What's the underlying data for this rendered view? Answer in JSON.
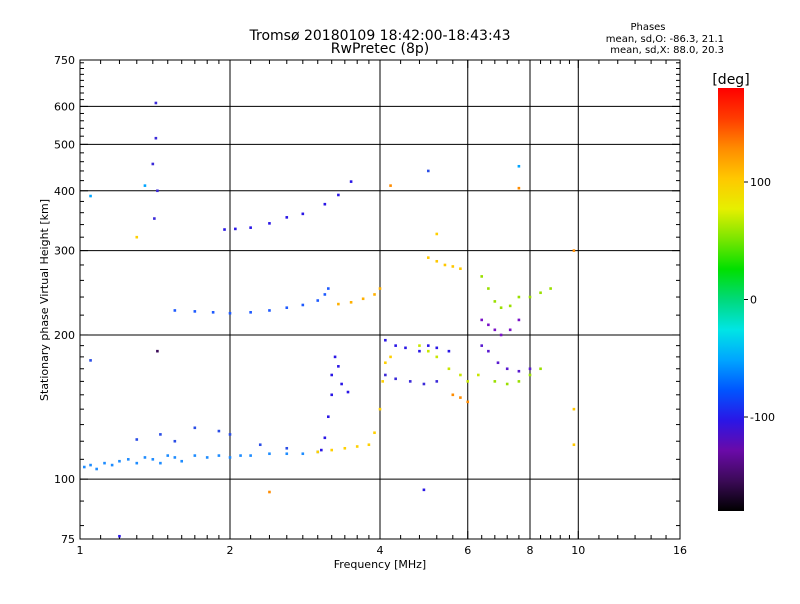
{
  "chart_data": {
    "type": "scatter",
    "title": "Tromsø 20180109 18:42:00-18:43:43",
    "subtitle": "RwPretec (8p)",
    "xlabel": "Frequency [MHz]",
    "ylabel": "Stationary phase Virtual Height [km]",
    "x_scale": "log",
    "y_scale": "log",
    "xlim": [
      1,
      16
    ],
    "ylim": [
      75,
      750
    ],
    "x_ticks": [
      1,
      2,
      4,
      6,
      8,
      10,
      16
    ],
    "x_minor_ticks": [
      1.1,
      1.2,
      1.3,
      1.4,
      1.5,
      1.6,
      1.7,
      1.8,
      1.9,
      2.2,
      2.4,
      2.6,
      2.8,
      3,
      3.2,
      3.4,
      3.6,
      3.8,
      4.4,
      4.8,
      5.2,
      5.6,
      6.4,
      6.8,
      7.2,
      7.6,
      8.4,
      8.8,
      9.2,
      9.6,
      11,
      12,
      13,
      14,
      15
    ],
    "y_ticks": [
      75,
      100,
      200,
      300,
      400,
      500,
      600,
      750
    ],
    "y_minor_ticks": [
      80,
      90,
      110,
      120,
      130,
      140,
      150,
      160,
      170,
      180,
      190,
      220,
      240,
      260,
      280,
      320,
      340,
      360,
      380,
      420,
      440,
      460,
      480,
      520,
      540,
      560,
      580,
      620,
      640,
      660,
      680,
      700,
      720,
      740
    ],
    "grid": true,
    "grid_x": [
      2,
      4,
      6,
      8,
      10
    ],
    "grid_y": [
      100,
      200,
      300,
      400,
      500,
      600
    ],
    "colorbar": {
      "label": "[deg]",
      "range": [
        -180,
        180
      ],
      "ticks": [
        100,
        0,
        -100
      ],
      "colors": [
        "#000000",
        "#3b0a57",
        "#6a0aa8",
        "#2a16e6",
        "#0055ff",
        "#00a5ff",
        "#00e5e5",
        "#00d97a",
        "#00e000",
        "#7ae600",
        "#e6ef00",
        "#ffc800",
        "#ff8c00",
        "#ff3c00",
        "#ff0000"
      ]
    },
    "annotation": {
      "title": "Phases",
      "line1": "mean, sd,O: -86.3, 21.1",
      "line2": "mean, sd,X:  88.0, 20.3"
    },
    "series": [
      {
        "color": "#1e8cff",
        "points": [
          [
            1.02,
            106
          ],
          [
            1.05,
            107
          ],
          [
            1.08,
            105
          ],
          [
            1.12,
            108
          ],
          [
            1.16,
            107
          ],
          [
            1.2,
            109
          ],
          [
            1.25,
            110
          ],
          [
            1.3,
            108
          ],
          [
            1.35,
            111
          ],
          [
            1.4,
            110
          ],
          [
            1.45,
            108
          ],
          [
            1.5,
            112
          ],
          [
            1.55,
            111
          ],
          [
            1.6,
            109
          ],
          [
            1.7,
            112
          ],
          [
            1.8,
            111
          ],
          [
            1.9,
            112
          ],
          [
            2.0,
            111
          ],
          [
            2.1,
            112
          ],
          [
            2.2,
            112
          ],
          [
            2.4,
            113
          ],
          [
            2.6,
            113
          ],
          [
            2.8,
            113
          ],
          [
            3.0,
            114
          ]
        ]
      },
      {
        "color": "#2a4de6",
        "points": [
          [
            1.3,
            121
          ],
          [
            1.45,
            124
          ],
          [
            1.55,
            120
          ],
          [
            1.7,
            128
          ],
          [
            1.9,
            126
          ],
          [
            2.0,
            124
          ],
          [
            2.3,
            118
          ],
          [
            2.6,
            116
          ]
        ]
      },
      {
        "color": "#1e5aff",
        "points": [
          [
            1.55,
            225
          ],
          [
            1.7,
            224
          ],
          [
            1.85,
            223
          ],
          [
            2.0,
            222
          ],
          [
            2.2,
            223
          ],
          [
            2.4,
            225
          ],
          [
            2.6,
            228
          ],
          [
            2.8,
            231
          ],
          [
            3.0,
            236
          ],
          [
            3.1,
            243
          ],
          [
            3.15,
            250
          ]
        ]
      },
      {
        "color": "#2a16e6",
        "points": [
          [
            1.95,
            332
          ],
          [
            2.05,
            333
          ],
          [
            2.2,
            335
          ],
          [
            2.4,
            342
          ],
          [
            2.6,
            352
          ],
          [
            2.8,
            358
          ],
          [
            3.1,
            375
          ],
          [
            3.3,
            392
          ],
          [
            3.5,
            418
          ]
        ]
      },
      {
        "color": "#3b2ad9",
        "points": [
          [
            1.42,
            610
          ],
          [
            1.42,
            515
          ],
          [
            1.4,
            455
          ],
          [
            1.43,
            400
          ],
          [
            1.41,
            350
          ]
        ]
      },
      {
        "color": "#2a16e6",
        "points": [
          [
            3.05,
            115
          ],
          [
            3.1,
            122
          ],
          [
            3.15,
            135
          ],
          [
            3.2,
            150
          ],
          [
            3.2,
            165
          ],
          [
            3.25,
            180
          ],
          [
            3.3,
            172
          ],
          [
            3.35,
            158
          ],
          [
            3.45,
            152
          ]
        ]
      },
      {
        "color": "#ffd000",
        "points": [
          [
            3.0,
            114
          ],
          [
            3.2,
            115
          ],
          [
            3.4,
            116
          ],
          [
            3.6,
            117
          ],
          [
            3.8,
            118
          ],
          [
            3.9,
            125
          ],
          [
            4.0,
            140
          ],
          [
            4.05,
            160
          ],
          [
            4.1,
            175
          ],
          [
            4.2,
            180
          ]
        ]
      },
      {
        "color": "#ffb000",
        "points": [
          [
            3.3,
            232
          ],
          [
            3.5,
            234
          ],
          [
            3.7,
            238
          ],
          [
            3.9,
            243
          ],
          [
            4.0,
            250
          ]
        ]
      },
      {
        "color": "#2a16e6",
        "points": [
          [
            4.1,
            195
          ],
          [
            4.3,
            190
          ],
          [
            4.5,
            188
          ],
          [
            4.8,
            185
          ],
          [
            5.0,
            190
          ],
          [
            5.2,
            188
          ],
          [
            5.5,
            185
          ]
        ]
      },
      {
        "color": "#3b2ad9",
        "points": [
          [
            4.1,
            165
          ],
          [
            4.3,
            162
          ],
          [
            4.6,
            160
          ],
          [
            4.9,
            158
          ],
          [
            5.2,
            160
          ]
        ]
      },
      {
        "color": "#ffc800",
        "points": [
          [
            5.0,
            290
          ],
          [
            5.2,
            285
          ],
          [
            5.4,
            280
          ],
          [
            5.6,
            278
          ],
          [
            5.8,
            275
          ]
        ]
      },
      {
        "color": "#c8e600",
        "points": [
          [
            4.8,
            190
          ],
          [
            5.0,
            185
          ],
          [
            5.2,
            180
          ],
          [
            5.5,
            170
          ],
          [
            5.8,
            165
          ],
          [
            6.0,
            160
          ],
          [
            6.3,
            165
          ]
        ]
      },
      {
        "color": "#9ae000",
        "points": [
          [
            6.4,
            265
          ],
          [
            6.6,
            250
          ],
          [
            6.8,
            235
          ],
          [
            7.0,
            228
          ],
          [
            7.3,
            230
          ],
          [
            7.6,
            240
          ],
          [
            8.0,
            240
          ],
          [
            8.4,
            245
          ],
          [
            8.8,
            250
          ]
        ]
      },
      {
        "color": "#7a10c8",
        "points": [
          [
            6.4,
            215
          ],
          [
            6.6,
            210
          ],
          [
            6.8,
            205
          ],
          [
            7.0,
            200
          ],
          [
            7.3,
            205
          ],
          [
            7.6,
            215
          ]
        ]
      },
      {
        "color": "#5a1ad0",
        "points": [
          [
            6.4,
            190
          ],
          [
            6.6,
            185
          ],
          [
            6.9,
            175
          ],
          [
            7.2,
            170
          ],
          [
            7.6,
            168
          ],
          [
            8.0,
            170
          ]
        ]
      },
      {
        "color": "#9ae000",
        "points": [
          [
            6.8,
            160
          ],
          [
            7.2,
            158
          ],
          [
            7.6,
            160
          ],
          [
            8.0,
            165
          ],
          [
            8.4,
            170
          ]
        ]
      },
      {
        "color": "#ff8c00",
        "points": [
          [
            5.6,
            150
          ],
          [
            5.8,
            148
          ],
          [
            6.0,
            145
          ]
        ]
      }
    ],
    "outliers": [
      {
        "x": 2.4,
        "y": 94,
        "color": "#ff8c00"
      },
      {
        "x": 4.9,
        "y": 95,
        "color": "#2a16e6"
      },
      {
        "x": 1.2,
        "y": 76,
        "color": "#2a16e6"
      },
      {
        "x": 1.05,
        "y": 390,
        "color": "#00a5ff"
      },
      {
        "x": 1.35,
        "y": 410,
        "color": "#00a5ff"
      },
      {
        "x": 4.2,
        "y": 410,
        "color": "#ff8c00"
      },
      {
        "x": 7.6,
        "y": 450,
        "color": "#00a5ff"
      },
      {
        "x": 7.6,
        "y": 405,
        "color": "#ff8c00"
      },
      {
        "x": 9.8,
        "y": 300,
        "color": "#ff8c00"
      },
      {
        "x": 9.8,
        "y": 140,
        "color": "#ffc800"
      },
      {
        "x": 9.8,
        "y": 118,
        "color": "#ffc800"
      },
      {
        "x": 1.3,
        "y": 320,
        "color": "#ffd000"
      },
      {
        "x": 1.05,
        "y": 177,
        "color": "#2a4de6"
      },
      {
        "x": 1.43,
        "y": 185,
        "color": "#3b0a57"
      },
      {
        "x": 5.0,
        "y": 440,
        "color": "#2a4de6"
      },
      {
        "x": 5.2,
        "y": 325,
        "color": "#ffd000"
      }
    ]
  }
}
